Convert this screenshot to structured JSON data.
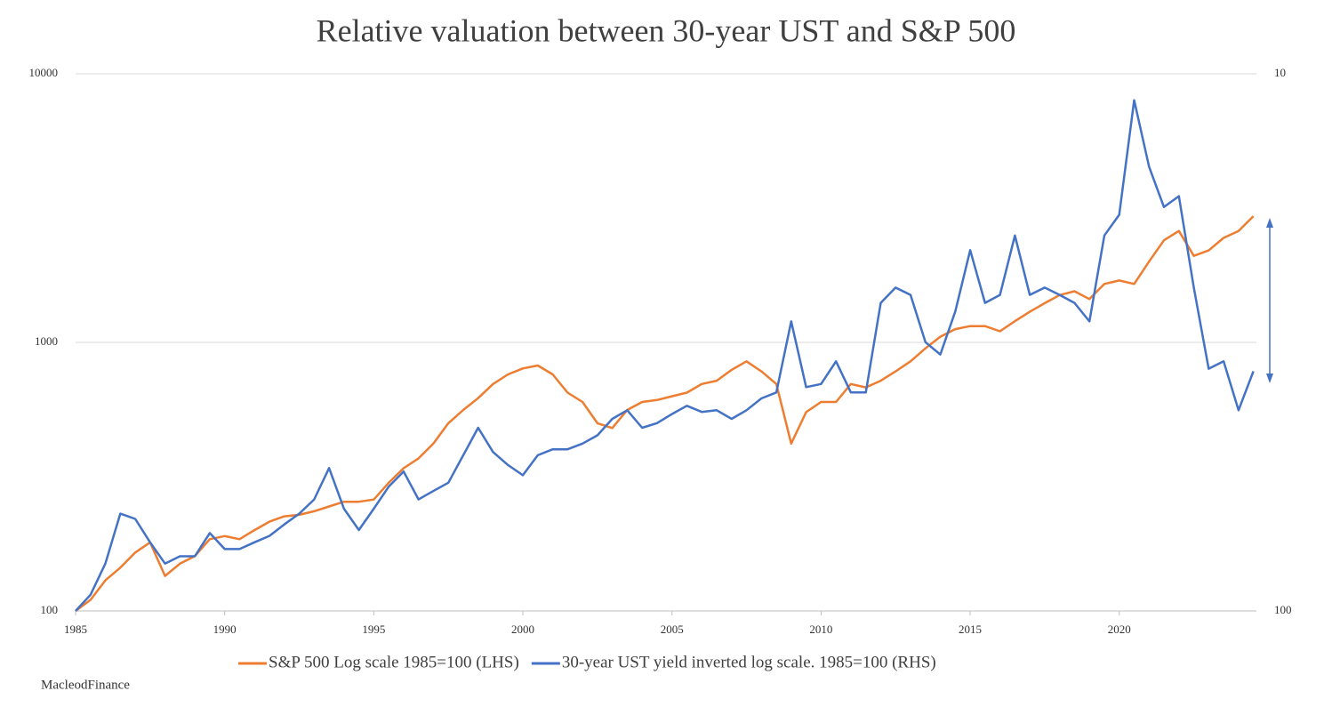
{
  "chart_data": {
    "type": "line",
    "title": "Relative valuation between 30-year UST and S&P 500",
    "source": "MacleodFinance",
    "x": [
      1985,
      1985.5,
      1986,
      1986.5,
      1987,
      1987.5,
      1988,
      1988.5,
      1989,
      1989.5,
      1990,
      1990.5,
      1991,
      1991.5,
      1992,
      1992.5,
      1993,
      1993.5,
      1994,
      1994.5,
      1995,
      1995.5,
      1996,
      1996.5,
      1997,
      1997.5,
      1998,
      1998.5,
      1999,
      1999.5,
      2000,
      2000.5,
      2001,
      2001.5,
      2002,
      2002.5,
      2003,
      2003.5,
      2004,
      2004.5,
      2005,
      2005.5,
      2006,
      2006.5,
      2007,
      2007.5,
      2008,
      2008.5,
      2009,
      2009.5,
      2010,
      2010.5,
      2011,
      2011.5,
      2012,
      2012.5,
      2013,
      2013.5,
      2014,
      2014.5,
      2015,
      2015.5,
      2016,
      2016.5,
      2017,
      2017.5,
      2018,
      2018.5,
      2019,
      2019.5,
      2020,
      2020.5,
      2021,
      2021.5,
      2022,
      2022.5,
      2023,
      2023.5,
      2024,
      2024.5
    ],
    "series": [
      {
        "name": "S&P 500 Log scale 1985=100 (LHS)",
        "color": "#ed7d31",
        "axis": "y",
        "values": [
          100,
          110,
          130,
          145,
          165,
          180,
          135,
          150,
          160,
          185,
          190,
          185,
          200,
          215,
          225,
          228,
          235,
          245,
          255,
          255,
          260,
          300,
          340,
          370,
          420,
          500,
          560,
          620,
          700,
          760,
          800,
          820,
          760,
          650,
          600,
          500,
          480,
          560,
          600,
          610,
          630,
          650,
          700,
          720,
          790,
          850,
          780,
          700,
          420,
          550,
          600,
          600,
          700,
          680,
          720,
          780,
          850,
          950,
          1050,
          1120,
          1150,
          1150,
          1100,
          1200,
          1300,
          1400,
          1500,
          1550,
          1450,
          1650,
          1700,
          1650,
          2000,
          2400,
          2600,
          2100,
          2200,
          2450,
          2600,
          2950
        ]
      },
      {
        "name": "30-year UST yield inverted log scale. 1985=100 (RHS)",
        "color": "#4472c4",
        "axis": "y2",
        "values": [
          100,
          93.3,
          81.6,
          65.9,
          67.4,
          74.5,
          81.6,
          79.1,
          79.1,
          71.6,
          76.7,
          76.7,
          74.5,
          72.5,
          69.0,
          65.9,
          62.0,
          54.2,
          64.5,
          70.7,
          64.5,
          58.7,
          55.0,
          62.0,
          59.8,
          57.7,
          51.3,
          45.6,
          50.6,
          53.5,
          55.9,
          51.3,
          50.0,
          50.0,
          48.8,
          47.1,
          43.9,
          42.3,
          45.6,
          44.7,
          43.0,
          41.5,
          42.6,
          42.3,
          43.9,
          42.3,
          40.2,
          39.2,
          28.9,
          38.3,
          37.8,
          34.3,
          39.2,
          39.2,
          26.7,
          25.0,
          25.8,
          31.6,
          33.3,
          27.7,
          21.3,
          26.7,
          25.8,
          20.0,
          25.8,
          25.0,
          25.8,
          26.7,
          28.9,
          20.0,
          18.3,
          11.2,
          14.9,
          17.7,
          16.9,
          25.0,
          35.4,
          34.3,
          42.3,
          35.8
        ]
      }
    ],
    "xlim": [
      1985,
      2024.6
    ],
    "xticks": [
      1985,
      1990,
      1995,
      2000,
      2005,
      2010,
      2015,
      2020
    ],
    "ylim": [
      100,
      10000
    ],
    "yticks": [
      100,
      1000,
      10000
    ],
    "ylog": true,
    "y2lim": [
      100,
      10
    ],
    "y2ticks": [
      10,
      100
    ],
    "y2log": true,
    "grid": true,
    "legend": "bottom"
  }
}
